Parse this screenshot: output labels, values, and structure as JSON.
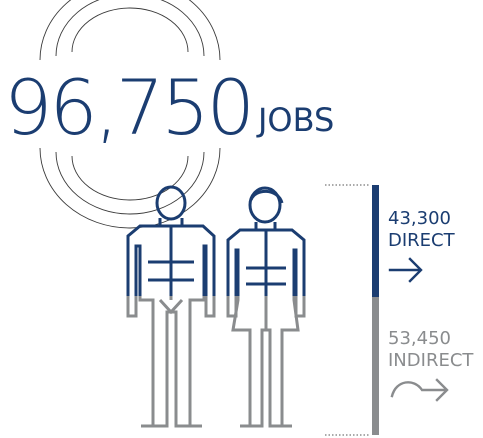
{
  "headline": {
    "total": "96,750",
    "unit": "JOBS"
  },
  "breakdown": [
    {
      "value": "43,300",
      "label": "DIRECT",
      "color": "#1b3d71",
      "icon": "arrow-right-icon"
    },
    {
      "value": "53,450",
      "label": "INDIRECT",
      "color": "#8a8c8e",
      "icon": "curved-arrow-right-icon"
    }
  ],
  "share": {
    "direct_fraction": 0.4475,
    "indirect_fraction": 0.5525
  },
  "colors": {
    "primary": "#1b3d71",
    "secondary": "#8a8c8e"
  },
  "icons": [
    "concentric-arcs-icon",
    "man-figure-icon",
    "woman-figure-icon",
    "bar-scale-icon"
  ]
}
